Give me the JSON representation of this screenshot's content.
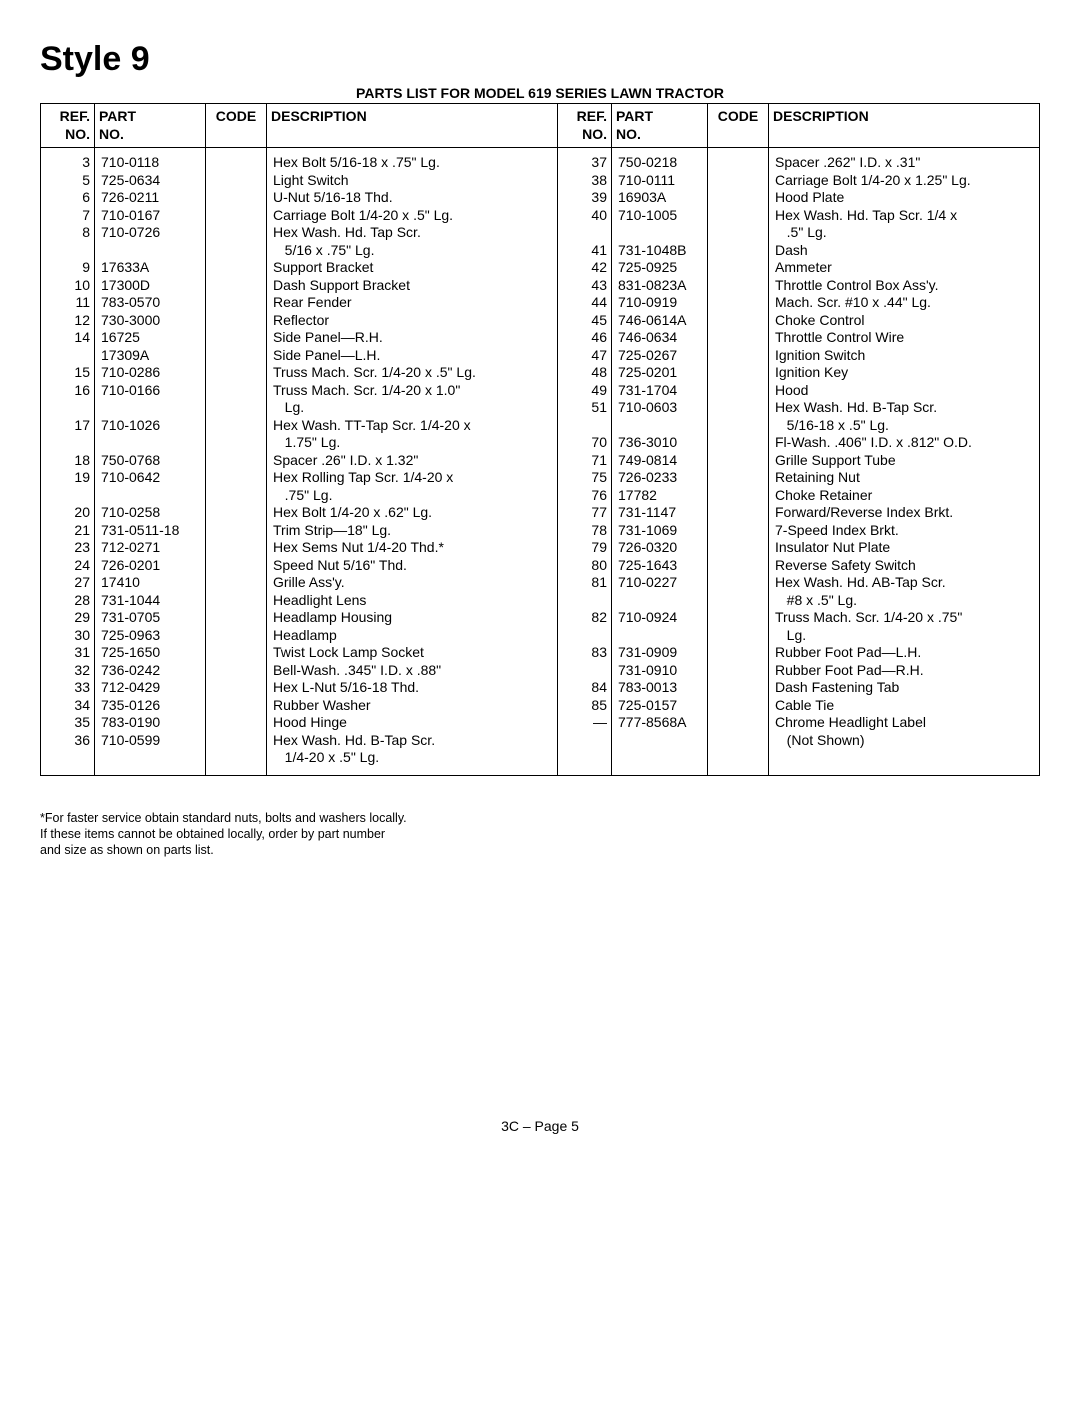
{
  "heading": "Style 9",
  "subtitle": "PARTS LIST FOR MODEL 619 SERIES LAWN TRACTOR",
  "headers": {
    "ref": "REF.\nNO.",
    "part": "PART\nNO.",
    "code": "CODE",
    "desc": "DESCRIPTION"
  },
  "left": [
    {
      "ref": "3",
      "part": "710-0118",
      "code": "",
      "desc": "Hex Bolt 5/16-18 x .75\" Lg."
    },
    {
      "ref": "5",
      "part": "725-0634",
      "code": "",
      "desc": "Light Switch"
    },
    {
      "ref": "6",
      "part": "726-0211",
      "code": "",
      "desc": "U-Nut 5/16-18 Thd."
    },
    {
      "ref": "7",
      "part": "710-0167",
      "code": "",
      "desc": "Carriage Bolt 1/4-20 x .5\" Lg."
    },
    {
      "ref": "8",
      "part": "710-0726",
      "code": "",
      "desc": "Hex Wash. Hd. Tap Scr."
    },
    {
      "ref": "",
      "part": "",
      "code": "",
      "desc": "  5/16 x .75\" Lg."
    },
    {
      "ref": "9",
      "part": "17633A",
      "code": "",
      "desc": "Support Bracket"
    },
    {
      "ref": "10",
      "part": "17300D",
      "code": "",
      "desc": "Dash Support Bracket"
    },
    {
      "ref": "11",
      "part": "783-0570",
      "code": "",
      "desc": "Rear Fender"
    },
    {
      "ref": "12",
      "part": "730-3000",
      "code": "",
      "desc": "Reflector"
    },
    {
      "ref": "14",
      "part": "16725",
      "code": "",
      "desc": "Side Panel—R.H."
    },
    {
      "ref": "",
      "part": "17309A",
      "code": "",
      "desc": "Side Panel—L.H."
    },
    {
      "ref": "15",
      "part": "710-0286",
      "code": "",
      "desc": "Truss Mach. Scr. 1/4-20 x .5\" Lg."
    },
    {
      "ref": "16",
      "part": "710-0166",
      "code": "",
      "desc": "Truss Mach. Scr. 1/4-20 x 1.0\""
    },
    {
      "ref": "",
      "part": "",
      "code": "",
      "desc": "  Lg."
    },
    {
      "ref": "17",
      "part": "710-1026",
      "code": "",
      "desc": "Hex Wash. TT-Tap Scr. 1/4-20 x"
    },
    {
      "ref": "",
      "part": "",
      "code": "",
      "desc": "  1.75\" Lg."
    },
    {
      "ref": "18",
      "part": "750-0768",
      "code": "",
      "desc": "Spacer .26\" I.D. x 1.32\""
    },
    {
      "ref": "19",
      "part": "710-0642",
      "code": "",
      "desc": "Hex Rolling Tap Scr. 1/4-20 x"
    },
    {
      "ref": "",
      "part": "",
      "code": "",
      "desc": "  .75\" Lg."
    },
    {
      "ref": "20",
      "part": "710-0258",
      "code": "",
      "desc": "Hex Bolt 1/4-20 x .62\" Lg."
    },
    {
      "ref": "21",
      "part": "731-0511-18",
      "code": "",
      "desc": "Trim Strip—18\" Lg."
    },
    {
      "ref": "23",
      "part": "712-0271",
      "code": "",
      "desc": "Hex Sems Nut 1/4-20 Thd.*"
    },
    {
      "ref": "24",
      "part": "726-0201",
      "code": "",
      "desc": "Speed Nut 5/16\" Thd."
    },
    {
      "ref": "27",
      "part": "17410",
      "code": "",
      "desc": "Grille Ass'y."
    },
    {
      "ref": "28",
      "part": "731-1044",
      "code": "",
      "desc": "Headlight Lens"
    },
    {
      "ref": "29",
      "part": "731-0705",
      "code": "",
      "desc": "Headlamp Housing"
    },
    {
      "ref": "30",
      "part": "725-0963",
      "code": "",
      "desc": "Headlamp"
    },
    {
      "ref": "31",
      "part": "725-1650",
      "code": "",
      "desc": "Twist Lock Lamp Socket"
    },
    {
      "ref": "32",
      "part": "736-0242",
      "code": "",
      "desc": "Bell-Wash. .345\" I.D. x .88\""
    },
    {
      "ref": "33",
      "part": "712-0429",
      "code": "",
      "desc": "Hex L-Nut 5/16-18 Thd."
    },
    {
      "ref": "34",
      "part": "735-0126",
      "code": "",
      "desc": "Rubber Washer"
    },
    {
      "ref": "35",
      "part": "783-0190",
      "code": "",
      "desc": "Hood Hinge"
    },
    {
      "ref": "36",
      "part": "710-0599",
      "code": "",
      "desc": "Hex Wash. Hd. B-Tap Scr."
    },
    {
      "ref": "",
      "part": "",
      "code": "",
      "desc": "  1/4-20 x .5\" Lg."
    }
  ],
  "right": [
    {
      "ref": "37",
      "part": "750-0218",
      "code": "",
      "desc": "Spacer .262\" I.D. x .31\""
    },
    {
      "ref": "38",
      "part": "710-0111",
      "code": "",
      "desc": "Carriage Bolt 1/4-20 x 1.25\" Lg."
    },
    {
      "ref": "39",
      "part": "16903A",
      "code": "",
      "desc": "Hood Plate"
    },
    {
      "ref": "40",
      "part": "710-1005",
      "code": "",
      "desc": "Hex Wash. Hd. Tap Scr. 1/4 x"
    },
    {
      "ref": "",
      "part": "",
      "code": "",
      "desc": "  .5\" Lg."
    },
    {
      "ref": "41",
      "part": "731-1048B",
      "code": "",
      "desc": "Dash"
    },
    {
      "ref": "42",
      "part": "725-0925",
      "code": "",
      "desc": "Ammeter"
    },
    {
      "ref": "43",
      "part": "831-0823A",
      "code": "",
      "desc": "Throttle Control Box Ass'y."
    },
    {
      "ref": "44",
      "part": "710-0919",
      "code": "",
      "desc": "Mach. Scr. #10 x .44\" Lg."
    },
    {
      "ref": "45",
      "part": "746-0614A",
      "code": "",
      "desc": "Choke Control"
    },
    {
      "ref": "46",
      "part": "746-0634",
      "code": "",
      "desc": "Throttle Control Wire"
    },
    {
      "ref": "47",
      "part": "725-0267",
      "code": "",
      "desc": "Ignition Switch"
    },
    {
      "ref": "48",
      "part": "725-0201",
      "code": "",
      "desc": "Ignition Key"
    },
    {
      "ref": "49",
      "part": "731-1704",
      "code": "",
      "desc": "Hood"
    },
    {
      "ref": "51",
      "part": "710-0603",
      "code": "",
      "desc": "Hex Wash. Hd. B-Tap Scr."
    },
    {
      "ref": "",
      "part": "",
      "code": "",
      "desc": "  5/16-18 x .5\" Lg."
    },
    {
      "ref": "70",
      "part": "736-3010",
      "code": "",
      "desc": "Fl-Wash. .406\" I.D. x .812\" O.D."
    },
    {
      "ref": "71",
      "part": "749-0814",
      "code": "",
      "desc": "Grille Support Tube"
    },
    {
      "ref": "75",
      "part": "726-0233",
      "code": "",
      "desc": "Retaining Nut"
    },
    {
      "ref": "76",
      "part": "17782",
      "code": "",
      "desc": "Choke Retainer"
    },
    {
      "ref": "77",
      "part": "731-1147",
      "code": "",
      "desc": "Forward/Reverse Index Brkt."
    },
    {
      "ref": "78",
      "part": "731-1069",
      "code": "",
      "desc": "7-Speed Index Brkt."
    },
    {
      "ref": "79",
      "part": "726-0320",
      "code": "",
      "desc": "Insulator Nut Plate"
    },
    {
      "ref": "80",
      "part": "725-1643",
      "code": "",
      "desc": "Reverse Safety Switch"
    },
    {
      "ref": "81",
      "part": "710-0227",
      "code": "",
      "desc": "Hex Wash. Hd. AB-Tap Scr."
    },
    {
      "ref": "",
      "part": "",
      "code": "",
      "desc": "  #8 x .5\" Lg."
    },
    {
      "ref": "82",
      "part": "710-0924",
      "code": "",
      "desc": "Truss Mach. Scr. 1/4-20 x .75\""
    },
    {
      "ref": "",
      "part": "",
      "code": "",
      "desc": "  Lg."
    },
    {
      "ref": "83",
      "part": "731-0909",
      "code": "",
      "desc": "Rubber Foot Pad—L.H."
    },
    {
      "ref": "",
      "part": "731-0910",
      "code": "",
      "desc": "Rubber Foot Pad—R.H."
    },
    {
      "ref": "84",
      "part": "783-0013",
      "code": "",
      "desc": "Dash Fastening Tab"
    },
    {
      "ref": "85",
      "part": "725-0157",
      "code": "",
      "desc": "Cable Tie"
    },
    {
      "ref": "—",
      "part": "777-8568A",
      "code": "",
      "desc": "Chrome Headlight Label"
    },
    {
      "ref": "",
      "part": "",
      "code": "",
      "desc": "  (Not Shown)"
    },
    {
      "ref": "",
      "part": "",
      "code": "",
      "desc": ""
    }
  ],
  "note": "*For faster service obtain standard nuts, bolts and washers locally.\nIf these items cannot be obtained locally, order by part number\nand size as shown on parts list.",
  "pageno": "3C – Page 5"
}
